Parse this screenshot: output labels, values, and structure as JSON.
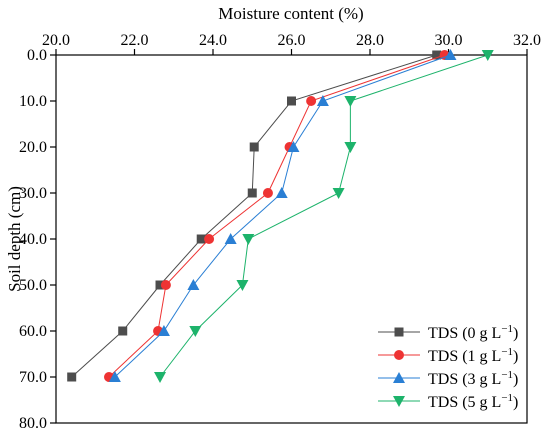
{
  "chart_data": {
    "type": "line",
    "xlabel": "Moisture content (%)",
    "ylabel": "Soil depth (cm)",
    "xlim": [
      20.0,
      32.0
    ],
    "ylim": [
      0.0,
      80.0
    ],
    "y_inverted": true,
    "x_axis_position": "top",
    "x_ticks": [
      "20.0",
      "22.0",
      "24.0",
      "26.0",
      "28.0",
      "30.0",
      "32.0"
    ],
    "y_ticks": [
      "0.0",
      "10.0",
      "20.0",
      "30.0",
      "40.0",
      "50.0",
      "60.0",
      "70.0",
      "80.0"
    ],
    "x_tick_values": [
      20,
      22,
      24,
      26,
      28,
      30,
      32
    ],
    "y_tick_values": [
      0,
      10,
      20,
      30,
      40,
      50,
      60,
      70,
      80
    ],
    "grid": false,
    "legend_position": "bottom-right",
    "depths": [
      0,
      10,
      20,
      30,
      40,
      50,
      60,
      70
    ],
    "series": [
      {
        "name": "TDS (0 g L",
        "sup": "−1",
        "close": ")",
        "color": "#4d4d4d",
        "marker": "square",
        "values": [
          29.7,
          26.0,
          25.05,
          25.0,
          23.7,
          22.65,
          21.7,
          20.4
        ]
      },
      {
        "name": "TDS (1 g L",
        "sup": "−1",
        "close": ")",
        "color": "#ee3333",
        "marker": "circle",
        "values": [
          29.9,
          26.5,
          25.95,
          25.4,
          23.9,
          22.8,
          22.6,
          21.35
        ]
      },
      {
        "name": "TDS (3 g L",
        "sup": "−1",
        "close": ")",
        "color": "#2a7fd4",
        "marker": "triangle-up",
        "values": [
          30.05,
          26.8,
          26.05,
          25.75,
          24.45,
          23.5,
          22.75,
          21.5
        ]
      },
      {
        "name": "TDS (5 g L",
        "sup": "−1",
        "close": ")",
        "color": "#1db36b",
        "marker": "triangle-down",
        "values": [
          31.0,
          27.5,
          27.5,
          27.2,
          24.9,
          24.75,
          23.55,
          22.65
        ]
      }
    ]
  }
}
